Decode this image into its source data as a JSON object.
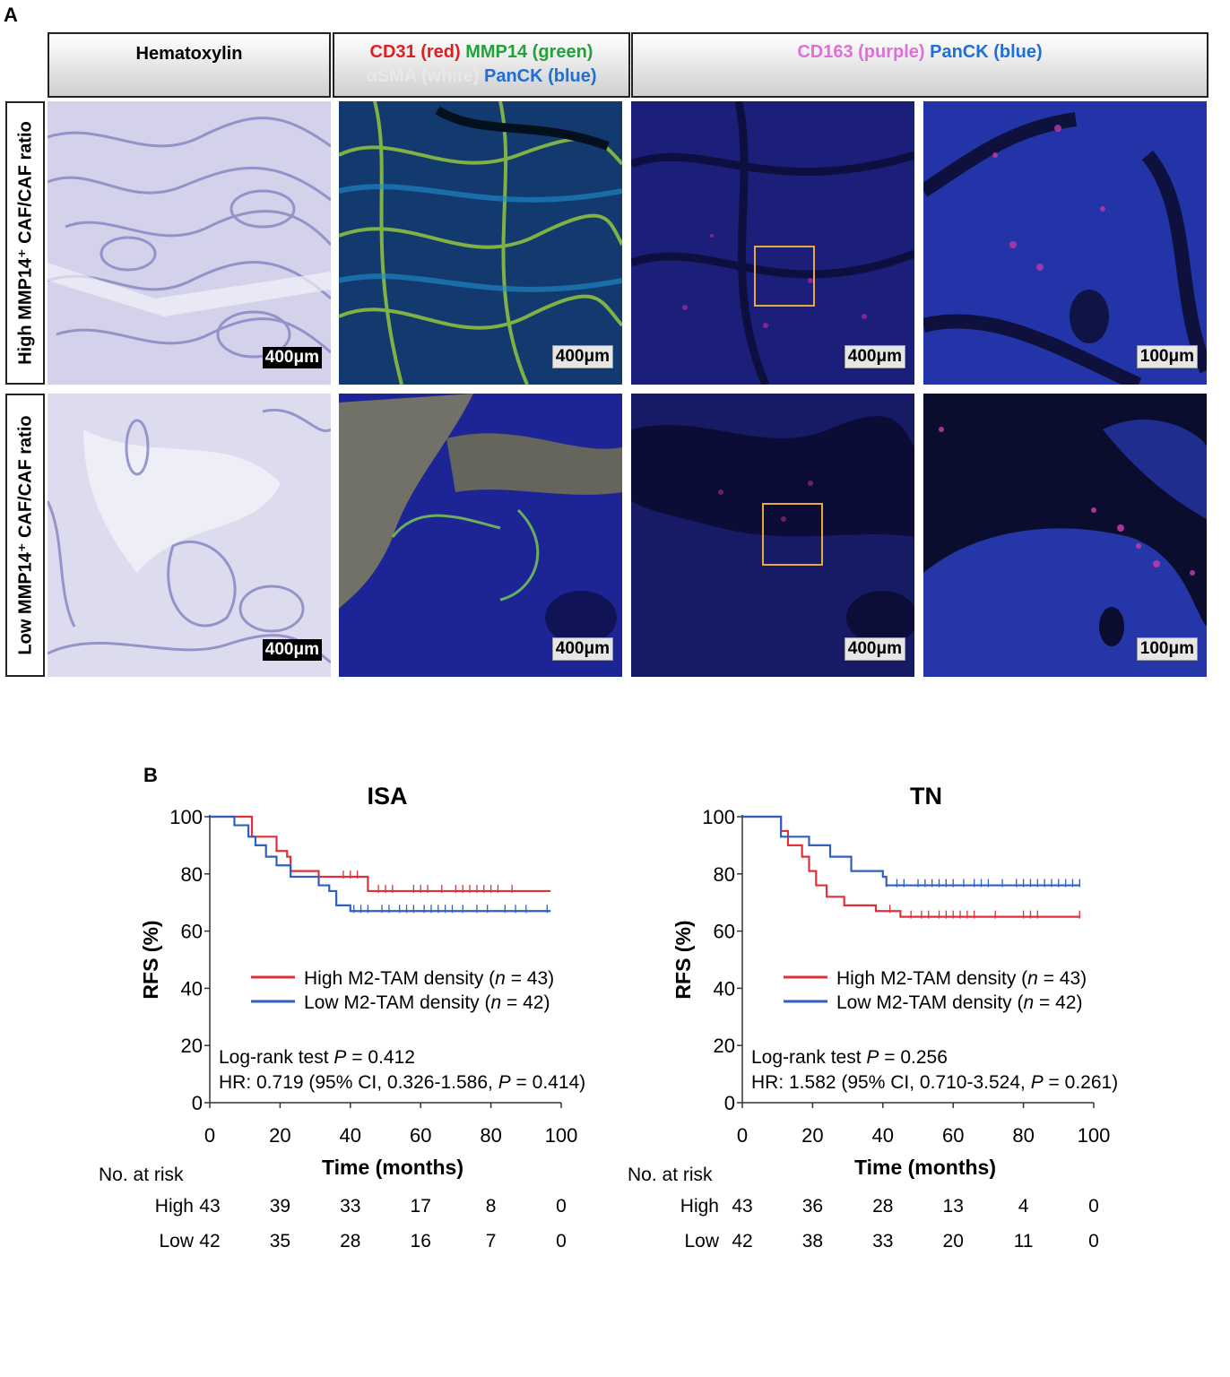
{
  "panelA": {
    "letter": "A",
    "headers": {
      "he": "Hematoxylin",
      "mif1": [
        {
          "text": "CD31 (red)",
          "color": "#e02020"
        },
        {
          "text": " MMP14 (green)",
          "color": "#22a33a"
        },
        {
          "text": "αSMA (white)",
          "color": "#e8e8e8"
        },
        {
          "text": " PanCK (blue)",
          "color": "#1f6fd6"
        }
      ],
      "mif2": [
        {
          "text": "CD163 (purple)",
          "color": "#e070d8"
        },
        {
          "text": " PanCK (blue)",
          "color": "#1f6fd6"
        }
      ]
    },
    "rows": {
      "high": "High MMP14⁺ CAF/CAF ratio",
      "low": "Low MMP14⁺ CAF/CAF ratio"
    },
    "scales": {
      "he_high": "400μm",
      "mif1_high": "400μm",
      "mif2_high": "400μm",
      "zoom_high": "100μm",
      "he_low": "400μm",
      "mif1_low": "400μm",
      "mif2_low": "400μm",
      "zoom_low": "100μm"
    }
  },
  "panelB": {
    "letter": "B",
    "colors": {
      "high": "#e0303a",
      "low": "#2f5fc0"
    },
    "risk_label": "No. at risk",
    "risk_rows": [
      "High",
      "Low"
    ]
  },
  "chart_data": [
    {
      "type": "line",
      "subtype": "kaplan-meier",
      "title": "ISA",
      "xlabel": "Time (months)",
      "ylabel": "RFS (%)",
      "xlim": [
        0,
        100
      ],
      "ylim": [
        0,
        100
      ],
      "xticks": [
        0,
        20,
        40,
        60,
        80,
        100
      ],
      "yticks": [
        0,
        20,
        40,
        60,
        80,
        100
      ],
      "series": [
        {
          "name": "High M2-TAM density",
          "n_label": "(n = 43)",
          "color": "#e0303a",
          "steps": [
            [
              0,
              100
            ],
            [
              12,
              100
            ],
            [
              12,
              93
            ],
            [
              19,
              93
            ],
            [
              19,
              88
            ],
            [
              22,
              88
            ],
            [
              22,
              86
            ],
            [
              23,
              86
            ],
            [
              23,
              81
            ],
            [
              31,
              81
            ],
            [
              31,
              79
            ],
            [
              45,
              79
            ],
            [
              45,
              74
            ],
            [
              97,
              74
            ]
          ],
          "censored": [
            38,
            40,
            42,
            48,
            50,
            52,
            58,
            60,
            62,
            66,
            70,
            72,
            74,
            76,
            78,
            80,
            82,
            86
          ]
        },
        {
          "name": "Low M2-TAM density",
          "n_label": "(n = 42)",
          "color": "#2f5fc0",
          "steps": [
            [
              0,
              100
            ],
            [
              7,
              100
            ],
            [
              7,
              97
            ],
            [
              11,
              97
            ],
            [
              11,
              93
            ],
            [
              13,
              93
            ],
            [
              13,
              90
            ],
            [
              16,
              90
            ],
            [
              16,
              86
            ],
            [
              19,
              86
            ],
            [
              19,
              83
            ],
            [
              23,
              83
            ],
            [
              23,
              79
            ],
            [
              31,
              79
            ],
            [
              31,
              76
            ],
            [
              34,
              76
            ],
            [
              34,
              74
            ],
            [
              36,
              74
            ],
            [
              36,
              69
            ],
            [
              40,
              69
            ],
            [
              40,
              67
            ],
            [
              97,
              67
            ]
          ],
          "censored": [
            41,
            43,
            45,
            49,
            51,
            54,
            56,
            58,
            61,
            63,
            65,
            67,
            69,
            72,
            76,
            79,
            84,
            87,
            90,
            96
          ]
        }
      ],
      "annotations": [
        "Log-rank test P = 0.412",
        "HR: 0.719 (95% CI, 0.326-1.586, P = 0.414)"
      ],
      "risk_table": {
        "times": [
          0,
          20,
          40,
          60,
          80,
          100
        ],
        "High": [
          43,
          39,
          33,
          17,
          8,
          0
        ],
        "Low": [
          42,
          35,
          28,
          16,
          7,
          0
        ]
      }
    },
    {
      "type": "line",
      "subtype": "kaplan-meier",
      "title": "TN",
      "xlabel": "Time (months)",
      "ylabel": "RFS (%)",
      "xlim": [
        0,
        100
      ],
      "ylim": [
        0,
        100
      ],
      "xticks": [
        0,
        20,
        40,
        60,
        80,
        100
      ],
      "yticks": [
        0,
        20,
        40,
        60,
        80,
        100
      ],
      "series": [
        {
          "name": "High M2-TAM density",
          "n_label": "(n = 43)",
          "color": "#e0303a",
          "steps": [
            [
              0,
              100
            ],
            [
              11,
              100
            ],
            [
              11,
              95
            ],
            [
              13,
              95
            ],
            [
              13,
              90
            ],
            [
              17,
              90
            ],
            [
              17,
              86
            ],
            [
              19,
              86
            ],
            [
              19,
              81
            ],
            [
              21,
              81
            ],
            [
              21,
              76
            ],
            [
              24,
              76
            ],
            [
              24,
              72
            ],
            [
              29,
              72
            ],
            [
              29,
              69
            ],
            [
              38,
              69
            ],
            [
              38,
              67
            ],
            [
              45,
              67
            ],
            [
              45,
              65
            ],
            [
              96,
              65
            ]
          ],
          "censored": [
            42,
            48,
            51,
            53,
            56,
            58,
            60,
            62,
            64,
            66,
            72,
            80,
            82,
            84,
            96
          ]
        },
        {
          "name": "Low M2-TAM density",
          "n_label": "(n = 42)",
          "color": "#2f5fc0",
          "steps": [
            [
              0,
              100
            ],
            [
              11,
              100
            ],
            [
              11,
              93
            ],
            [
              19,
              93
            ],
            [
              19,
              90
            ],
            [
              25,
              90
            ],
            [
              25,
              86
            ],
            [
              31,
              86
            ],
            [
              31,
              81
            ],
            [
              40,
              81
            ],
            [
              40,
              79
            ],
            [
              41,
              79
            ],
            [
              41,
              76
            ],
            [
              96,
              76
            ]
          ],
          "censored": [
            41,
            44,
            46,
            50,
            52,
            54,
            56,
            58,
            60,
            63,
            66,
            68,
            70,
            74,
            78,
            80,
            82,
            84,
            86,
            88,
            90,
            92,
            94,
            96
          ]
        }
      ],
      "annotations": [
        "Log-rank test P = 0.256",
        "HR: 1.582 (95% CI, 0.710-3.524, P = 0.261)"
      ],
      "risk_table": {
        "times": [
          0,
          20,
          40,
          60,
          80,
          100
        ],
        "High": [
          43,
          36,
          28,
          13,
          4,
          0
        ],
        "Low": [
          42,
          38,
          33,
          20,
          11,
          0
        ]
      }
    }
  ]
}
